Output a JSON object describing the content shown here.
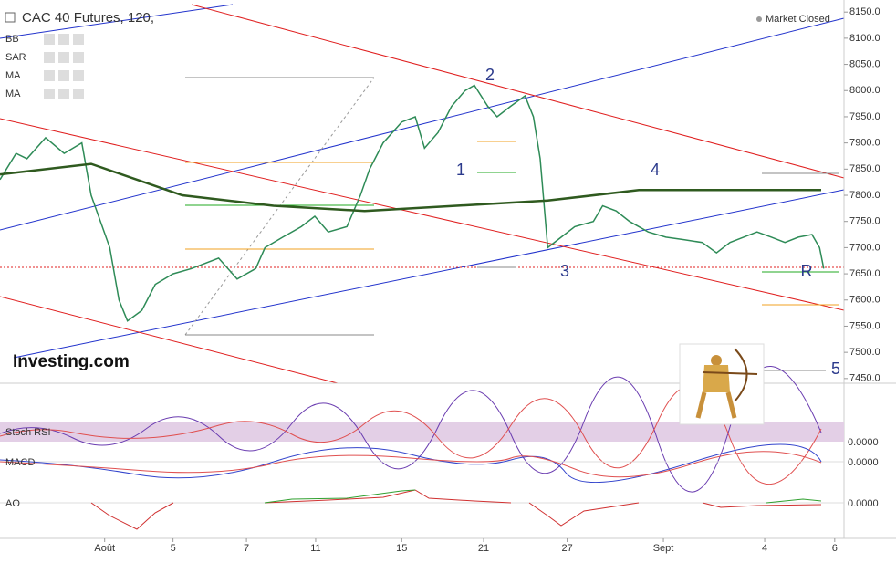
{
  "chart_data": {
    "type": "line",
    "title": "CAC 40 Futures, 120,",
    "status": "Market Closed",
    "logo": "Investing.com",
    "indicators": [
      "BB",
      "SAR",
      "MA",
      "MA"
    ],
    "xlim": [
      0,
      100
    ],
    "ylim": [
      7441,
      8173
    ],
    "xticks": [
      {
        "value": 12.4,
        "label": "Août"
      },
      {
        "value": 20.5,
        "label": "5"
      },
      {
        "value": 29.2,
        "label": "7"
      },
      {
        "value": 37.4,
        "label": "11"
      },
      {
        "value": 47.6,
        "label": "15"
      },
      {
        "value": 57.3,
        "label": "21"
      },
      {
        "value": 67.2,
        "label": "27"
      },
      {
        "value": 78.6,
        "label": "Sept"
      },
      {
        "value": 90.6,
        "label": "4"
      },
      {
        "value": 98.9,
        "label": "6"
      }
    ],
    "yticks": [
      {
        "value": 7450,
        "label": "7450.0"
      },
      {
        "value": 7500,
        "label": "7500.0"
      },
      {
        "value": 7550,
        "label": "7550.0"
      },
      {
        "value": 7600,
        "label": "7600.0"
      },
      {
        "value": 7650,
        "label": "7650.0"
      },
      {
        "value": 7700,
        "label": "7700.0"
      },
      {
        "value": 7750,
        "label": "7750.0"
      },
      {
        "value": 7800,
        "label": "7800.0"
      },
      {
        "value": 7850,
        "label": "7850.0"
      },
      {
        "value": 7900,
        "label": "7900.0"
      },
      {
        "value": 7950,
        "label": "7950.0"
      },
      {
        "value": 8000,
        "label": "8000.0"
      },
      {
        "value": 8050,
        "label": "8050.0"
      },
      {
        "value": 8100,
        "label": "8100.0"
      },
      {
        "value": 8150,
        "label": "8150.0"
      }
    ],
    "series": [
      {
        "color": "#2e8b57",
        "x": [
          0,
          1.9,
          3.2,
          5.4,
          7.6,
          9.7,
          10.8,
          13,
          14.1,
          15.1,
          16.8,
          18.4,
          20.5,
          22.7,
          25.9,
          28.1,
          30.3,
          31.4,
          33.5,
          35.7,
          37.3,
          38.9,
          41.1,
          42.7,
          43.8,
          45.4,
          47.6,
          49.2,
          50.3,
          51.9,
          53.5,
          55.1,
          56.2,
          57.8,
          58.9,
          60.5,
          62.2,
          63.2,
          64,
          64.9,
          66.5,
          68.1,
          70.3,
          71.4,
          73,
          74.6,
          76.8,
          78.9,
          81.1,
          83.2,
          84.9,
          86.5,
          88.1,
          89.7,
          91.4,
          93,
          94.6,
          96.2,
          97.1,
          97.6
        ],
        "values": [
          7830,
          7880,
          7870,
          7910,
          7880,
          7900,
          7800,
          7700,
          7600,
          7560,
          7580,
          7630,
          7650,
          7660,
          7680,
          7640,
          7660,
          7700,
          7720,
          7740,
          7760,
          7730,
          7740,
          7800,
          7850,
          7900,
          7940,
          7950,
          7890,
          7920,
          7970,
          8000,
          8010,
          7970,
          7950,
          7970,
          7990,
          7950,
          7870,
          7700,
          7720,
          7740,
          7750,
          7780,
          7770,
          7750,
          7730,
          7720,
          7715,
          7710,
          7690,
          7710,
          7720,
          7730,
          7720,
          7710,
          7720,
          7725,
          7700,
          7660
        ]
      },
      {
        "color": "#2f5a1f",
        "x": [
          0,
          10.8,
          21.6,
          32.4,
          43.2,
          54.1,
          64.9,
          75.7,
          86.5,
          97.3
        ],
        "values": [
          7840,
          7860,
          7800,
          7780,
          7770,
          7780,
          7790,
          7810,
          7810,
          7810
        ]
      }
    ],
    "waves": [
      "1",
      "2",
      "3",
      "4",
      "5",
      "R"
    ],
    "panels": [
      {
        "title": "Stoch RSI",
        "tick": "0.0000"
      },
      {
        "title": "MACD",
        "tick": "0.0000"
      },
      {
        "title": "AO",
        "tick": "0.0000"
      }
    ]
  }
}
